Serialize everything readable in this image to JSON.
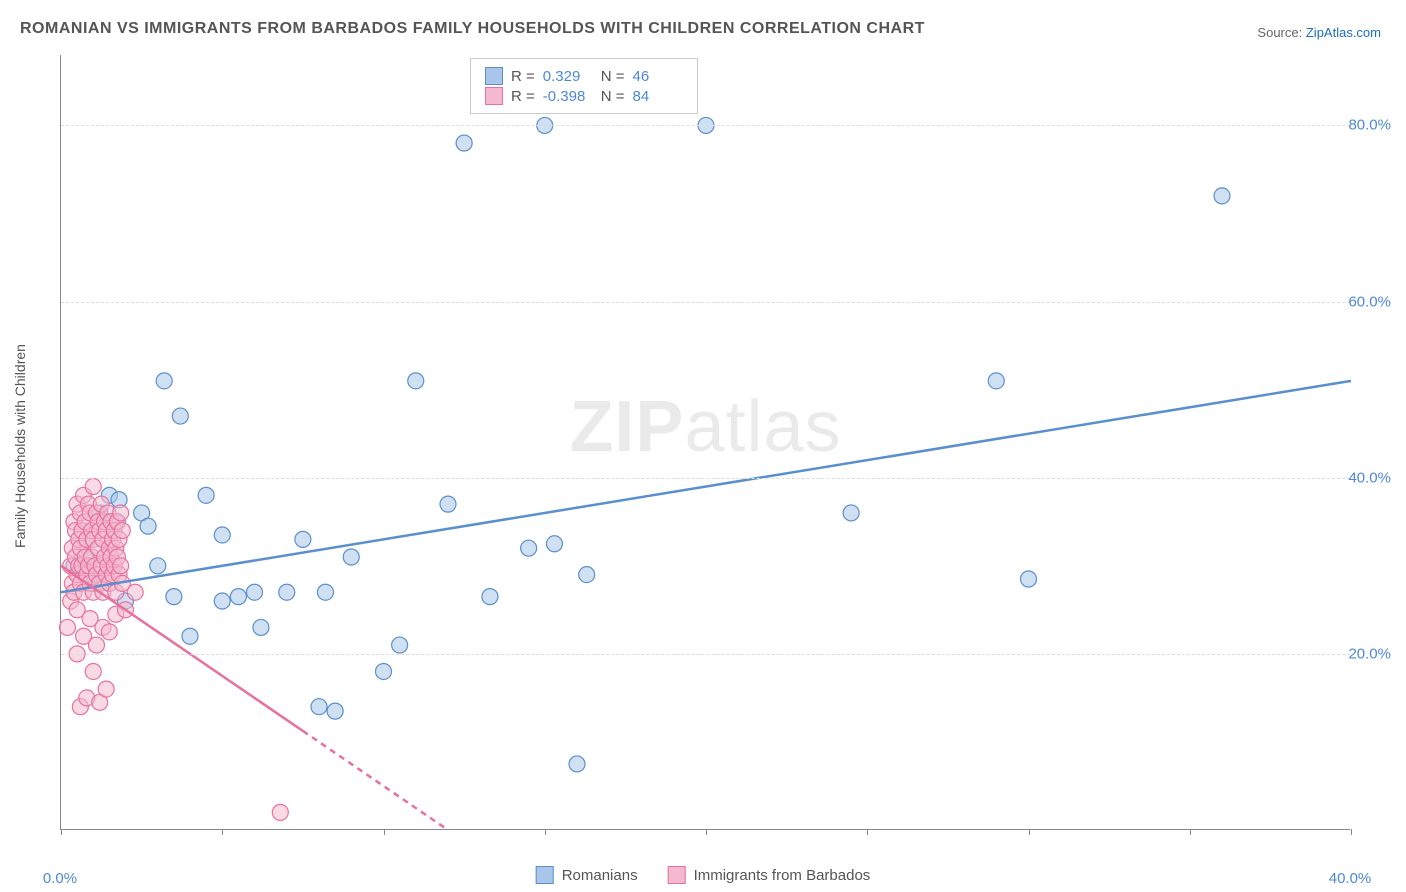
{
  "title": "ROMANIAN VS IMMIGRANTS FROM BARBADOS FAMILY HOUSEHOLDS WITH CHILDREN CORRELATION CHART",
  "source_label": "Source:",
  "source_link": "ZipAtlas.com",
  "y_axis_label": "Family Households with Children",
  "watermark": {
    "bold": "ZIP",
    "light": "atlas"
  },
  "chart": {
    "type": "scatter",
    "background_color": "#ffffff",
    "grid_color": "#dddddd",
    "axis_color": "#888888",
    "x_range": [
      0,
      40
    ],
    "y_range": [
      0,
      88
    ],
    "x_ticks": [
      0,
      5,
      10,
      15,
      20,
      25,
      30,
      35,
      40
    ],
    "x_tick_labels": [
      "0.0%",
      "",
      "",
      "",
      "",
      "",
      "",
      "",
      "40.0%"
    ],
    "y_grid": [
      20,
      40,
      60,
      80
    ],
    "y_tick_labels": [
      "20.0%",
      "40.0%",
      "60.0%",
      "80.0%"
    ],
    "marker_radius": 8,
    "marker_opacity": 0.55,
    "regression_line_width": 2.5,
    "series": [
      {
        "name": "Romanians",
        "color_fill": "#a9c6ea",
        "color_stroke": "#5a8fce",
        "r": 0.329,
        "n": 46,
        "regression": {
          "x1": 0,
          "y1": 27,
          "x2": 40,
          "y2": 51,
          "dashed_from": null
        },
        "points": [
          [
            0.4,
            30
          ],
          [
            0.5,
            29
          ],
          [
            0.8,
            31
          ],
          [
            0.8,
            33
          ],
          [
            1.0,
            28
          ],
          [
            1.2,
            36
          ],
          [
            1.4,
            29
          ],
          [
            1.5,
            38
          ],
          [
            1.7,
            35
          ],
          [
            1.8,
            37.5
          ],
          [
            2.0,
            26
          ],
          [
            2.5,
            36
          ],
          [
            2.7,
            34.5
          ],
          [
            3.0,
            30
          ],
          [
            3.2,
            51
          ],
          [
            3.5,
            26.5
          ],
          [
            3.7,
            47
          ],
          [
            4.0,
            22
          ],
          [
            4.5,
            38
          ],
          [
            5.0,
            33.5
          ],
          [
            5.0,
            26
          ],
          [
            5.5,
            26.5
          ],
          [
            6.0,
            27
          ],
          [
            6.2,
            23
          ],
          [
            7.0,
            27
          ],
          [
            7.5,
            33
          ],
          [
            8.0,
            14
          ],
          [
            8.2,
            27
          ],
          [
            8.5,
            13.5
          ],
          [
            9.0,
            31
          ],
          [
            10.0,
            18
          ],
          [
            10.5,
            21
          ],
          [
            11.0,
            51
          ],
          [
            12.0,
            37
          ],
          [
            12.5,
            78
          ],
          [
            13.3,
            26.5
          ],
          [
            14.5,
            32
          ],
          [
            15.0,
            80
          ],
          [
            15.3,
            32.5
          ],
          [
            16.0,
            7.5
          ],
          [
            16.3,
            29
          ],
          [
            20.0,
            80
          ],
          [
            24.5,
            36
          ],
          [
            29.0,
            51
          ],
          [
            30.0,
            28.5
          ],
          [
            36.0,
            72
          ]
        ]
      },
      {
        "name": "Immigrants from Barbados",
        "color_fill": "#f4b9ce",
        "color_stroke": "#e7719e",
        "r": -0.398,
        "n": 84,
        "regression": {
          "x1": 0,
          "y1": 30,
          "x2": 12,
          "y2": 0,
          "dashed_from": 7.5
        },
        "points": [
          [
            0.2,
            23
          ],
          [
            0.3,
            26
          ],
          [
            0.3,
            30
          ],
          [
            0.35,
            32
          ],
          [
            0.35,
            28
          ],
          [
            0.4,
            35
          ],
          [
            0.4,
            27
          ],
          [
            0.45,
            31
          ],
          [
            0.45,
            34
          ],
          [
            0.5,
            29
          ],
          [
            0.5,
            37
          ],
          [
            0.5,
            25
          ],
          [
            0.55,
            33
          ],
          [
            0.55,
            30
          ],
          [
            0.6,
            36
          ],
          [
            0.6,
            28
          ],
          [
            0.6,
            32
          ],
          [
            0.65,
            34
          ],
          [
            0.65,
            30
          ],
          [
            0.7,
            38
          ],
          [
            0.7,
            27
          ],
          [
            0.75,
            35
          ],
          [
            0.75,
            31
          ],
          [
            0.8,
            29
          ],
          [
            0.8,
            33
          ],
          [
            0.85,
            37
          ],
          [
            0.85,
            30
          ],
          [
            0.9,
            36
          ],
          [
            0.9,
            28
          ],
          [
            0.95,
            34
          ],
          [
            0.95,
            31
          ],
          [
            1.0,
            39
          ],
          [
            1.0,
            27
          ],
          [
            1.0,
            33
          ],
          [
            1.05,
            30
          ],
          [
            1.1,
            36
          ],
          [
            1.1,
            29
          ],
          [
            1.15,
            35
          ],
          [
            1.15,
            32
          ],
          [
            1.2,
            28
          ],
          [
            1.2,
            34
          ],
          [
            1.25,
            37
          ],
          [
            1.25,
            30
          ],
          [
            1.3,
            33
          ],
          [
            1.3,
            27
          ],
          [
            1.35,
            31
          ],
          [
            1.35,
            35
          ],
          [
            1.4,
            29
          ],
          [
            1.4,
            34
          ],
          [
            1.45,
            30
          ],
          [
            1.45,
            36
          ],
          [
            1.5,
            28
          ],
          [
            1.5,
            32
          ],
          [
            1.55,
            35
          ],
          [
            1.55,
            31
          ],
          [
            1.6,
            33
          ],
          [
            1.6,
            29
          ],
          [
            1.65,
            30
          ],
          [
            1.65,
            34
          ],
          [
            1.7,
            27
          ],
          [
            1.7,
            32
          ],
          [
            1.75,
            35
          ],
          [
            1.75,
            31
          ],
          [
            1.8,
            29
          ],
          [
            1.8,
            33
          ],
          [
            1.85,
            30
          ],
          [
            1.85,
            36
          ],
          [
            1.9,
            28
          ],
          [
            1.9,
            34
          ],
          [
            0.5,
            20
          ],
          [
            0.7,
            22
          ],
          [
            0.9,
            24
          ],
          [
            1.1,
            21
          ],
          [
            1.3,
            23
          ],
          [
            1.5,
            22.5
          ],
          [
            1.7,
            24.5
          ],
          [
            0.6,
            14
          ],
          [
            0.8,
            15
          ],
          [
            1.0,
            18
          ],
          [
            1.2,
            14.5
          ],
          [
            1.4,
            16
          ],
          [
            2.0,
            25
          ],
          [
            2.3,
            27
          ],
          [
            6.8,
            2
          ]
        ]
      }
    ]
  },
  "legend_top": [
    {
      "swatch_fill": "#a9c6ea",
      "swatch_stroke": "#5a8fce",
      "r_label": "R =",
      "r_value": " 0.329",
      "n_label": "N =",
      "n_value": "46"
    },
    {
      "swatch_fill": "#f4b9ce",
      "swatch_stroke": "#e7719e",
      "r_label": "R =",
      "r_value": "-0.398",
      "n_label": "N =",
      "n_value": "84"
    }
  ],
  "legend_bottom": [
    {
      "swatch_fill": "#a9c6ea",
      "swatch_stroke": "#5a8fce",
      "label": "Romanians"
    },
    {
      "swatch_fill": "#f4b9ce",
      "swatch_stroke": "#e7719e",
      "label": "Immigrants from Barbados"
    }
  ]
}
